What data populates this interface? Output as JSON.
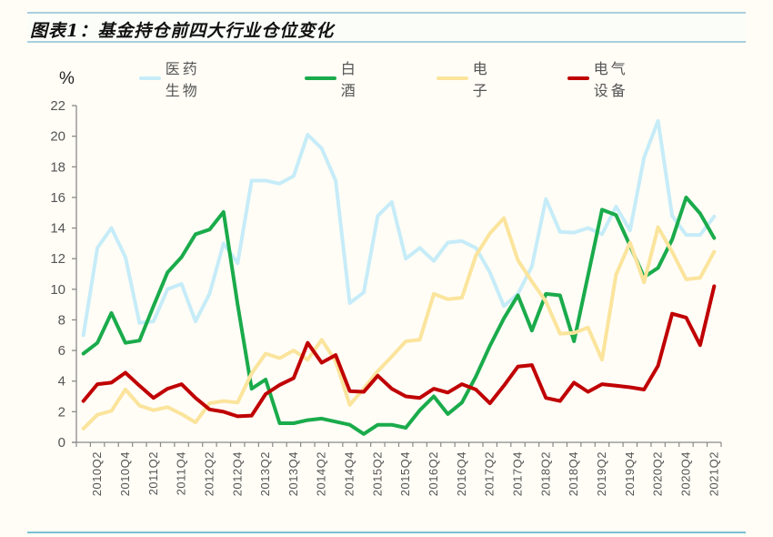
{
  "title": "图表1：基金持仓前四大行业仓位变化",
  "unit": "%",
  "legend": [
    {
      "label": "医药生物",
      "color": "#c6ecf8"
    },
    {
      "label": "白酒",
      "color": "#1aab4b"
    },
    {
      "label": "电子",
      "color": "#fbe49c"
    },
    {
      "label": "电气设备",
      "color": "#c00000"
    }
  ],
  "chart_data": {
    "type": "line",
    "title": "图表1：基金持仓前四大行业仓位变化",
    "xlabel": "",
    "ylabel": "%",
    "ylim": [
      0,
      22
    ],
    "yticks": [
      0,
      2,
      4,
      6,
      8,
      10,
      12,
      14,
      16,
      18,
      20,
      22
    ],
    "grid": false,
    "legend_position": "top",
    "x": [
      "2010Q1",
      "2010Q2",
      "2010Q3",
      "2010Q4",
      "2011Q1",
      "2011Q2",
      "2011Q3",
      "2011Q4",
      "2012Q1",
      "2012Q2",
      "2012Q3",
      "2012Q4",
      "2013Q1",
      "2013Q2",
      "2013Q3",
      "2013Q4",
      "2014Q1",
      "2014Q2",
      "2014Q3",
      "2014Q4",
      "2015Q1",
      "2015Q2",
      "2015Q3",
      "2015Q4",
      "2016Q1",
      "2016Q2",
      "2016Q3",
      "2016Q4",
      "2017Q1",
      "2017Q2",
      "2017Q3",
      "2017Q4",
      "2018Q1",
      "2018Q2",
      "2018Q3",
      "2018Q4",
      "2019Q1",
      "2019Q2",
      "2019Q3",
      "2019Q4",
      "2020Q1",
      "2020Q2",
      "2020Q3",
      "2020Q4",
      "2021Q1",
      "2021Q2"
    ],
    "x_tick_labels": [
      "2010Q2",
      "2010Q4",
      "2011Q2",
      "2011Q4",
      "2012Q2",
      "2012Q4",
      "2013Q2",
      "2013Q4",
      "2014Q2",
      "2014Q4",
      "2015Q2",
      "2015Q4",
      "2016Q2",
      "2016Q4",
      "2017Q2",
      "2017Q4",
      "2018Q2",
      "2018Q4",
      "2019Q2",
      "2019Q4",
      "2020Q2",
      "2020Q4",
      "2021Q2"
    ],
    "series": [
      {
        "name": "医药生物",
        "color": "#c6ecf8",
        "values": [
          7.0,
          12.7,
          14.0,
          12.1,
          7.8,
          7.9,
          10.0,
          10.35,
          7.9,
          9.7,
          13.0,
          11.7,
          17.1,
          17.1,
          16.9,
          17.4,
          20.1,
          19.2,
          17.1,
          9.1,
          9.8,
          14.8,
          15.7,
          12.0,
          12.7,
          11.85,
          13.05,
          13.15,
          12.7,
          11.1,
          8.9,
          9.7,
          11.5,
          15.9,
          13.75,
          13.7,
          14.0,
          13.6,
          15.4,
          13.85,
          18.6,
          21.0,
          14.8,
          13.55,
          13.55,
          14.75
        ]
      },
      {
        "name": "白酒",
        "color": "#1aab4b",
        "values": [
          5.8,
          6.5,
          8.45,
          6.5,
          6.65,
          8.9,
          11.1,
          12.1,
          13.6,
          13.9,
          15.05,
          9.0,
          3.5,
          4.1,
          1.25,
          1.25,
          1.45,
          1.55,
          1.35,
          1.15,
          0.55,
          1.15,
          1.15,
          0.95,
          2.1,
          3.0,
          1.85,
          2.6,
          4.3,
          6.3,
          8.1,
          9.6,
          7.3,
          9.7,
          9.6,
          6.6,
          10.9,
          15.2,
          14.85,
          12.85,
          10.8,
          11.4,
          13.25,
          16.0,
          14.95,
          13.35
        ]
      },
      {
        "name": "电子",
        "color": "#fbe49c",
        "values": [
          0.9,
          1.8,
          2.05,
          3.45,
          2.4,
          2.1,
          2.3,
          1.85,
          1.3,
          2.55,
          2.7,
          2.6,
          4.5,
          5.8,
          5.5,
          6.0,
          5.4,
          6.7,
          5.3,
          2.45,
          3.5,
          4.65,
          5.6,
          6.6,
          6.7,
          9.7,
          9.35,
          9.45,
          12.2,
          13.65,
          14.65,
          11.9,
          10.5,
          9.2,
          7.1,
          7.15,
          7.5,
          5.4,
          10.95,
          13.05,
          10.45,
          14.05,
          12.45,
          10.65,
          10.75,
          12.45
        ]
      },
      {
        "name": "电气设备",
        "color": "#c00000",
        "values": [
          2.7,
          3.8,
          3.9,
          4.55,
          3.7,
          2.9,
          3.5,
          3.8,
          2.9,
          2.15,
          2.0,
          1.7,
          1.75,
          3.15,
          3.75,
          4.2,
          6.5,
          5.2,
          5.7,
          3.35,
          3.3,
          4.35,
          3.5,
          3.0,
          2.9,
          3.5,
          3.25,
          3.8,
          3.45,
          2.55,
          3.7,
          4.95,
          5.05,
          2.9,
          2.7,
          3.9,
          3.3,
          3.8,
          3.7,
          3.6,
          3.45,
          5.0,
          8.4,
          8.15,
          6.35,
          10.2
        ]
      }
    ]
  }
}
